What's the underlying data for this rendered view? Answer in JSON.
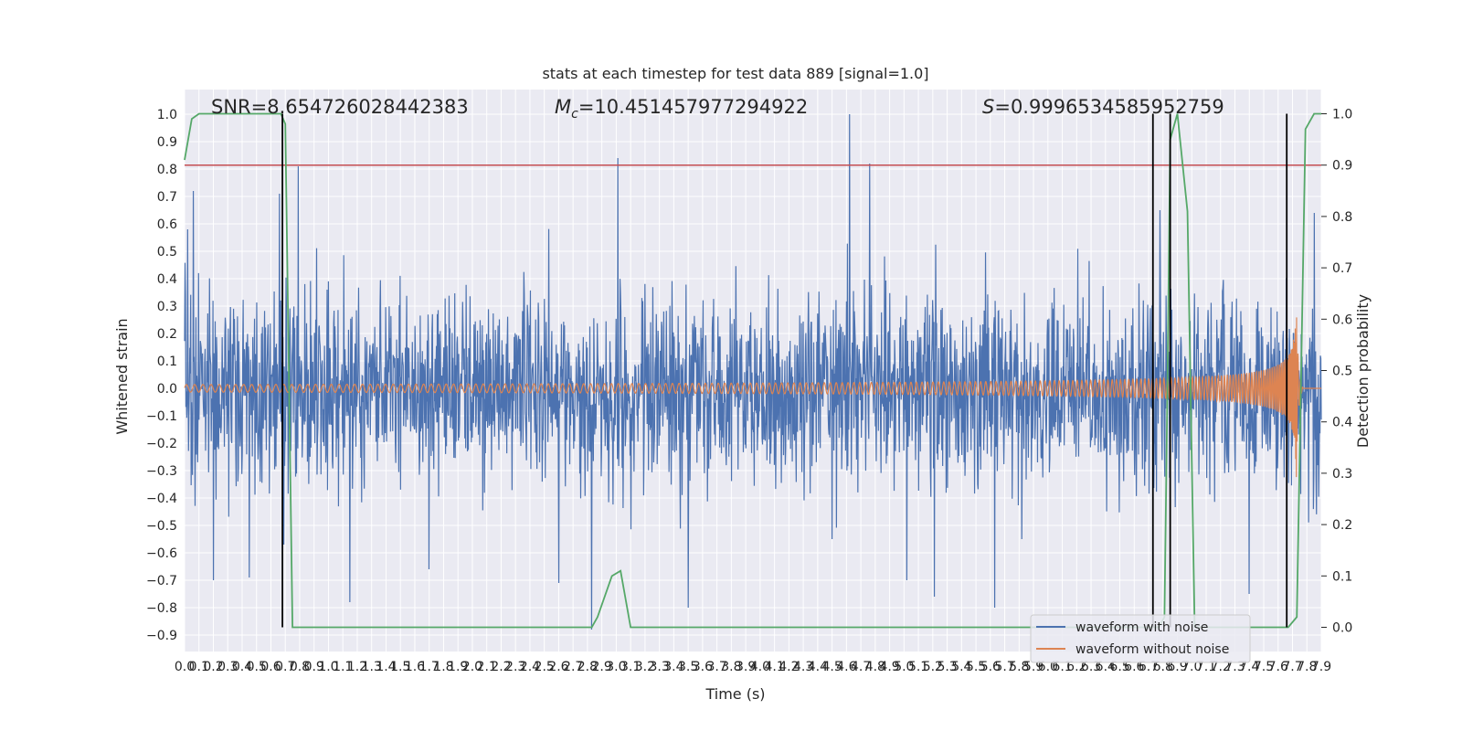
{
  "chart_data": {
    "type": "line",
    "title": "stats at each timestep for test data 889 [signal=1.0]",
    "xlabel": "Time (s)",
    "ylabel_left": "Whitened strain",
    "ylabel_right": "Detection probability",
    "xlim": [
      0.0,
      7.9
    ],
    "ylim_left": [
      -0.96,
      1.09
    ],
    "ylim_right": [
      0.0,
      1.0
    ],
    "x_ticks": [
      "0.0",
      "0.1",
      "0.2",
      "0.3",
      "0.4",
      "0.5",
      "0.6",
      "0.7",
      "0.8",
      "0.9",
      "1.0",
      "1.1",
      "1.2",
      "1.3",
      "1.4",
      "1.5",
      "1.6",
      "1.7",
      "1.8",
      "1.9",
      "2.0",
      "2.1",
      "2.2",
      "2.3",
      "2.4",
      "2.5",
      "2.6",
      "2.7",
      "2.8",
      "2.9",
      "3.0",
      "3.1",
      "3.2",
      "3.3",
      "3.4",
      "3.5",
      "3.6",
      "3.7",
      "3.8",
      "3.9",
      "4.0",
      "4.1",
      "4.2",
      "4.3",
      "4.4",
      "4.5",
      "4.6",
      "4.7",
      "4.8",
      "4.9",
      "5.0",
      "5.1",
      "5.2",
      "5.3",
      "5.4",
      "5.5",
      "5.6",
      "5.7",
      "5.8",
      "5.9",
      "6.0",
      "6.1",
      "6.2",
      "6.3",
      "6.4",
      "6.5",
      "6.6",
      "6.7",
      "6.8",
      "6.9",
      "7.0",
      "7.1",
      "7.2",
      "7.3",
      "7.4",
      "7.5",
      "7.6",
      "7.7",
      "7.8",
      "7.9"
    ],
    "y_ticks_left": [
      "1.0",
      "0.9",
      "0.8",
      "0.7",
      "0.6",
      "0.5",
      "0.4",
      "0.3",
      "0.2",
      "0.1",
      "0.0",
      "−0.1",
      "−0.2",
      "−0.3",
      "−0.4",
      "−0.5",
      "−0.6",
      "−0.7",
      "−0.8",
      "−0.9"
    ],
    "y_ticks_right": [
      "1.0",
      "0.9",
      "0.8",
      "0.7",
      "0.6",
      "0.5",
      "0.4",
      "0.3",
      "0.2",
      "0.1",
      "0.0"
    ],
    "annotations": {
      "snr": "SNR=8.654726028442383",
      "mc_prefix": "M",
      "mc_sub": "c",
      "mc_value": "=10.451457977294922",
      "s_prefix": "S",
      "s_value": "=0.9996534585952759"
    },
    "series": [
      {
        "name": "waveform with noise",
        "color": "#4c72b0",
        "axis": "left",
        "envelope_typical": 0.28,
        "spikes": [
          [
            0.02,
            0.58
          ],
          [
            0.06,
            0.72
          ],
          [
            0.2,
            -0.7
          ],
          [
            0.45,
            -0.69
          ],
          [
            0.66,
            0.71
          ],
          [
            0.69,
            -0.57
          ],
          [
            0.79,
            0.81
          ],
          [
            1.15,
            -0.78
          ],
          [
            1.7,
            -0.66
          ],
          [
            2.6,
            -0.71
          ],
          [
            2.83,
            -0.88
          ],
          [
            3.01,
            0.84
          ],
          [
            3.5,
            -0.8
          ],
          [
            4.5,
            -0.55
          ],
          [
            4.62,
            1.0
          ],
          [
            4.76,
            0.82
          ],
          [
            5.02,
            -0.7
          ],
          [
            5.21,
            -0.76
          ],
          [
            5.63,
            -0.8
          ],
          [
            5.82,
            -0.55
          ],
          [
            6.78,
            0.65
          ],
          [
            7.4,
            -0.75
          ],
          [
            7.85,
            0.64
          ]
        ]
      },
      {
        "name": "waveform without noise",
        "color": "#dd8452",
        "axis": "left",
        "model": "chirp",
        "merger_time": 7.73,
        "amplitude_start": 0.014,
        "amplitude_peak": 0.35
      },
      {
        "name": "",
        "color": "#55a868",
        "axis": "right",
        "x": [
          0.0,
          0.05,
          0.1,
          0.15,
          0.3,
          0.5,
          0.6,
          0.67,
          0.7,
          0.75,
          2.5,
          2.83,
          2.87,
          2.97,
          3.03,
          3.1,
          3.5,
          4.5,
          5.5,
          6.5,
          6.74,
          6.77,
          6.81,
          6.83,
          6.85,
          6.9,
          6.97,
          7.02,
          7.08,
          7.3,
          7.5,
          7.6,
          7.67,
          7.73,
          7.79,
          7.85,
          7.9
        ],
        "y": [
          0.91,
          0.99,
          1.0,
          1.0,
          1.0,
          1.0,
          1.0,
          1.0,
          0.98,
          0.0,
          0.0,
          0.0,
          0.02,
          0.1,
          0.11,
          0.0,
          0.0,
          0.0,
          0.0,
          0.0,
          0.0,
          0.0,
          0.02,
          0.45,
          0.95,
          1.0,
          0.81,
          0.0,
          0.0,
          0.0,
          0.0,
          0.0,
          0.0,
          0.02,
          0.97,
          1.0,
          1.0
        ]
      },
      {
        "name": "",
        "color": "#c44e52",
        "axis": "right",
        "type": "threshold",
        "value": 0.9
      }
    ],
    "vertical_lines": [
      0.68,
      6.73,
      6.85,
      7.66
    ],
    "legend": {
      "position": "lower-right",
      "entries": [
        "waveform with noise",
        "waveform without noise"
      ]
    },
    "grid": true,
    "style": {
      "background": "#eaeaf2",
      "grid_color": "#ffffff"
    }
  }
}
